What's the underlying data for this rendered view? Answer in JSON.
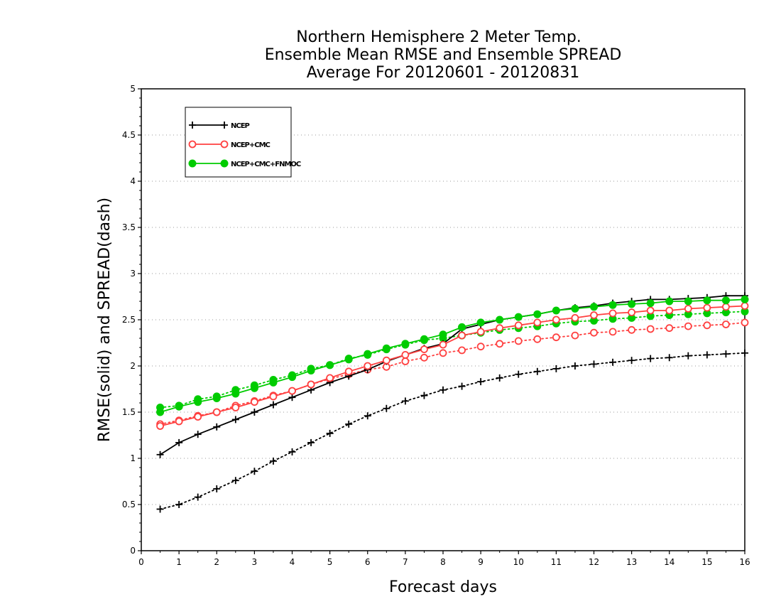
{
  "chart_data": {
    "type": "line",
    "title": [
      "Northern Hemisphere 2 Meter Temp.",
      "Ensemble Mean RMSE and Ensemble SPREAD",
      "Average For 20120601 - 20120831"
    ],
    "xlabel": "Forecast days",
    "ylabel": "RMSE(solid) and SPREAD(dash)",
    "xlim": [
      0,
      16
    ],
    "ylim": [
      0,
      5
    ],
    "xticks": [
      "0",
      "1",
      "2",
      "3",
      "4",
      "5",
      "6",
      "7",
      "8",
      "9",
      "10",
      "11",
      "12",
      "13",
      "14",
      "15",
      "16"
    ],
    "yticks": [
      "0",
      "0.5",
      "1",
      "1.5",
      "2",
      "2.5",
      "3",
      "3.5",
      "4",
      "4.5",
      "5"
    ],
    "grid": "horizontal dotted",
    "legend_position": "top-left",
    "x": [
      0.5,
      1,
      1.5,
      2,
      2.5,
      3,
      3.5,
      4,
      4.5,
      5,
      5.5,
      6,
      6.5,
      7,
      7.5,
      8,
      8.5,
      9,
      9.5,
      10,
      10.5,
      11,
      11.5,
      12,
      12.5,
      13,
      13.5,
      14,
      14.5,
      15,
      15.5,
      16
    ],
    "series": [
      {
        "name": "NCEP",
        "color": "#000000",
        "marker": "plus",
        "rmse": [
          1.04,
          1.17,
          1.26,
          1.34,
          1.42,
          1.5,
          1.58,
          1.66,
          1.74,
          1.82,
          1.89,
          1.96,
          2.05,
          2.12,
          2.19,
          2.24,
          2.4,
          2.45,
          2.5,
          2.53,
          2.56,
          2.6,
          2.63,
          2.65,
          2.68,
          2.7,
          2.72,
          2.72,
          2.73,
          2.74,
          2.76,
          2.76
        ],
        "spread": [
          0.45,
          0.5,
          0.58,
          0.67,
          0.76,
          0.86,
          0.97,
          1.07,
          1.17,
          1.27,
          1.37,
          1.46,
          1.54,
          1.62,
          1.68,
          1.74,
          1.78,
          1.83,
          1.87,
          1.91,
          1.94,
          1.97,
          2.0,
          2.02,
          2.04,
          2.06,
          2.08,
          2.09,
          2.11,
          2.12,
          2.13,
          2.14
        ]
      },
      {
        "name": "NCEP+CMC",
        "color": "#ff4040",
        "marker": "open-circle",
        "rmse": [
          1.35,
          1.4,
          1.45,
          1.5,
          1.55,
          1.61,
          1.67,
          1.73,
          1.8,
          1.87,
          1.94,
          2.0,
          2.06,
          2.12,
          2.18,
          2.23,
          2.33,
          2.37,
          2.41,
          2.44,
          2.47,
          2.5,
          2.52,
          2.55,
          2.57,
          2.58,
          2.6,
          2.6,
          2.62,
          2.63,
          2.64,
          2.65
        ],
        "spread": [
          1.37,
          1.41,
          1.46,
          1.5,
          1.57,
          1.62,
          1.68,
          1.73,
          1.8,
          1.86,
          1.91,
          1.96,
          1.99,
          2.05,
          2.09,
          2.14,
          2.17,
          2.21,
          2.24,
          2.27,
          2.29,
          2.31,
          2.33,
          2.36,
          2.37,
          2.39,
          2.4,
          2.41,
          2.43,
          2.44,
          2.45,
          2.47
        ]
      },
      {
        "name": "NCEP+CMC+FNMOC",
        "color": "#00cc00",
        "marker": "filled-circle",
        "rmse": [
          1.5,
          1.56,
          1.61,
          1.65,
          1.7,
          1.76,
          1.82,
          1.88,
          1.95,
          2.01,
          2.07,
          2.13,
          2.19,
          2.24,
          2.29,
          2.34,
          2.42,
          2.47,
          2.5,
          2.53,
          2.56,
          2.6,
          2.62,
          2.64,
          2.66,
          2.67,
          2.68,
          2.7,
          2.7,
          2.71,
          2.71,
          2.72
        ],
        "spread": [
          1.55,
          1.57,
          1.64,
          1.67,
          1.74,
          1.79,
          1.85,
          1.9,
          1.97,
          2.01,
          2.08,
          2.12,
          2.18,
          2.23,
          2.28,
          2.3,
          2.33,
          2.36,
          2.39,
          2.41,
          2.43,
          2.46,
          2.48,
          2.49,
          2.51,
          2.52,
          2.54,
          2.55,
          2.56,
          2.57,
          2.58,
          2.59
        ]
      }
    ]
  }
}
